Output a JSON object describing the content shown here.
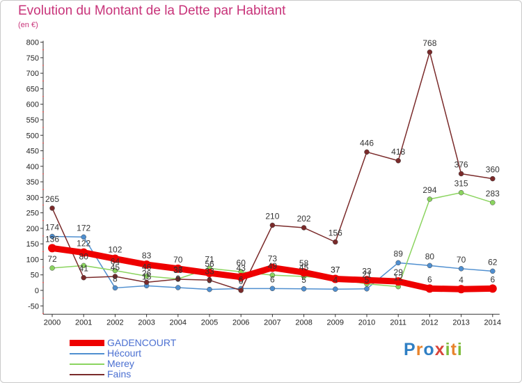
{
  "title": "Evolution du Montant de la Dette par Habitant",
  "unit": "(en €)",
  "logo": "Proxiti",
  "chart_data": {
    "type": "line",
    "title": "Evolution du Montant de la Dette par Habitant",
    "ylabel": "(en €)",
    "xlabel": "",
    "ylim": [
      -50,
      800
    ],
    "yticks": [
      -50,
      0,
      50,
      100,
      150,
      200,
      250,
      300,
      350,
      400,
      450,
      500,
      550,
      600,
      650,
      700,
      750,
      800
    ],
    "categories": [
      "2000",
      "2001",
      "2002",
      "2003",
      "2004",
      "2005",
      "2006",
      "2007",
      "2008",
      "2009",
      "2010",
      "2011",
      "2012",
      "2013",
      "2014"
    ],
    "grid": false,
    "legend": "bottom-left",
    "series": [
      {
        "name": "GADENCOURT",
        "color": "#ee0000",
        "values": [
          136,
          122,
          102,
          83,
          70,
          56,
          43,
          73,
          58,
          37,
          33,
          29,
          6,
          4,
          6
        ]
      },
      {
        "name": "Hécourt",
        "color": "#4f8fd0",
        "values": [
          174,
          172,
          8,
          15,
          9,
          3,
          6,
          6,
          5,
          4,
          5,
          89,
          80,
          70,
          62
        ]
      },
      {
        "name": "Merey",
        "color": "#8bd45f",
        "values": [
          72,
          80,
          64,
          46,
          37,
          71,
          60,
          49,
          45,
          37,
          21,
          12,
          294,
          315,
          283
        ]
      },
      {
        "name": "Fains",
        "color": "#7a2a2a",
        "values": [
          265,
          41,
          45,
          26,
          36,
          33,
          0,
          210,
          202,
          156,
          446,
          418,
          768,
          376,
          360
        ]
      }
    ],
    "labels_shown": {
      "GADENCOURT": [
        "136",
        "122",
        "102",
        "83",
        "70",
        "56",
        "43",
        "73",
        "58",
        "37",
        "33",
        "29",
        "6",
        "4",
        "6"
      ],
      "Hécourt": [
        "174",
        "172",
        "8",
        "15",
        "9",
        "3",
        "6",
        "6",
        "5",
        "4",
        "5",
        "89",
        "80",
        "70",
        "62"
      ],
      "Merey": [
        "72",
        "80",
        "64",
        "46",
        "37",
        "71",
        "60",
        "49",
        "45",
        "37",
        "21",
        "12",
        "294",
        "315",
        "283"
      ],
      "Fains": [
        "265",
        "41",
        "45",
        "26",
        "36",
        "33",
        "0",
        "210",
        "202",
        "156",
        "446",
        "418",
        "768",
        "376",
        "360"
      ]
    }
  }
}
